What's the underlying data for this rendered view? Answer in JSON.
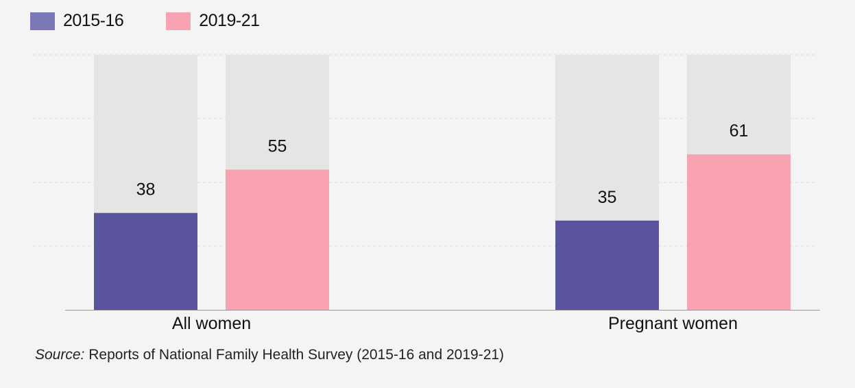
{
  "legend": [
    {
      "label": "2015-16",
      "color": "#7b78b6"
    },
    {
      "label": "2019-21",
      "color": "#f9a3b2"
    }
  ],
  "chart_data": {
    "type": "bar",
    "categories": [
      "All women",
      "Pregnant women"
    ],
    "series": [
      {
        "name": "2015-16",
        "values": [
          38,
          35
        ],
        "color": "#5a549c"
      },
      {
        "name": "2019-21",
        "values": [
          55,
          61
        ],
        "color": "#f9a3b2"
      }
    ],
    "ylim": [
      0,
      100
    ],
    "grid": true,
    "legend_position": "top-left",
    "background_bar_color": "#e5e5e5"
  },
  "source": {
    "label": "Source:",
    "text": "Reports of National Family Health Survey (2015-16 and 2019-21)"
  }
}
